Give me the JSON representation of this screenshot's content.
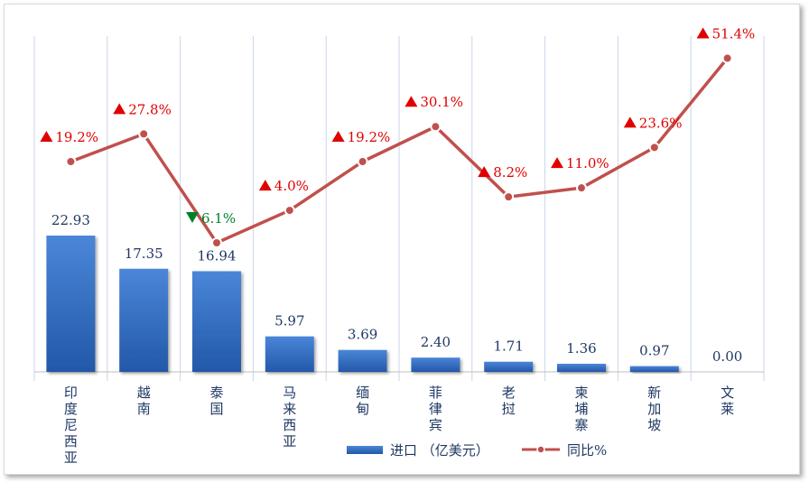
{
  "chart_data": {
    "type": "bar+line",
    "categories": [
      "印度尼西亚",
      "越南",
      "泰国",
      "马来西亚",
      "缅甸",
      "菲律宾",
      "老挝",
      "柬埔寨",
      "新加坡",
      "文莱"
    ],
    "bar_series": {
      "name": "进口 （亿美元）",
      "values": [
        22.93,
        17.35,
        16.94,
        5.97,
        3.69,
        2.4,
        1.71,
        1.36,
        0.97,
        0.0
      ],
      "labels": [
        "22.93",
        "17.35",
        "16.94",
        "5.97",
        "3.69",
        "2.40",
        "1.71",
        "1.36",
        "0.97",
        "0.00"
      ],
      "color": "#2e64b5"
    },
    "line_series": {
      "name": "同比%",
      "values": [
        19.2,
        27.8,
        -6.1,
        4.0,
        19.2,
        30.1,
        8.2,
        11.0,
        23.6,
        51.4
      ],
      "labels": [
        "19.2%",
        "27.8%",
        "6.1%",
        "4.0%",
        "19.2%",
        "30.1%",
        "8.2%",
        "11.0%",
        "23.6%",
        "51.4%"
      ],
      "color": "#c0504d",
      "up_color": "#e00000",
      "down_color": "#00802b"
    },
    "bar_ylim": [
      0,
      50
    ],
    "line_ylim": [
      -30,
      60
    ],
    "legend_position": "bottom",
    "grid": "vertical"
  }
}
